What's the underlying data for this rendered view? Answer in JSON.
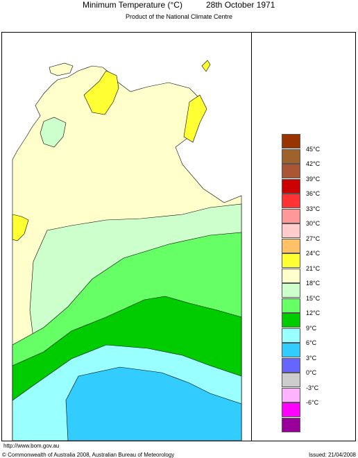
{
  "header": {
    "title": "Minimum Temperature (°C)",
    "date": "28th October 1971",
    "subtitle": "Product of the National Climate Centre"
  },
  "footer": {
    "url": "http://www.bom.gov.au",
    "copyright": "© Commonwealth of Australia 2008, Australian Bureau of Meteorology",
    "issued": "Issued: 21/04/2008"
  },
  "legend": {
    "swatches": [
      {
        "color": "#993300"
      },
      {
        "color": "#a0622d"
      },
      {
        "color": "#aa5533"
      },
      {
        "color": "#cc0000"
      },
      {
        "color": "#ff3333"
      },
      {
        "color": "#ff9999"
      },
      {
        "color": "#ffcccc"
      },
      {
        "color": "#ffc266"
      },
      {
        "color": "#ffff33"
      },
      {
        "color": "#ffffcc"
      },
      {
        "color": "#ccffcc"
      },
      {
        "color": "#66ff66"
      },
      {
        "color": "#00cc00"
      },
      {
        "color": "#99ffff"
      },
      {
        "color": "#33ccff"
      },
      {
        "color": "#6666ff"
      },
      {
        "color": "#cccccc"
      },
      {
        "color": "#ffb3ff"
      },
      {
        "color": "#ff00ff"
      },
      {
        "color": "#990099"
      }
    ],
    "labels": [
      "45°C",
      "42°C",
      "39°C",
      "36°C",
      "33°C",
      "30°C",
      "27°C",
      "24°C",
      "21°C",
      "18°C",
      "15°C",
      "12°C",
      "9°C",
      "6°C",
      "3°C",
      "0°C",
      "-3°C",
      "-6°C"
    ]
  },
  "map": {
    "colors": {
      "band_24_27": "#ffff33",
      "band_21_24": "#ffffcc",
      "band_18_21": "#ccffcc",
      "band_15_18": "#66ff66",
      "band_12_15": "#00cc00",
      "band_9_12": "#99ffff",
      "band_6_9": "#33ccff"
    }
  }
}
